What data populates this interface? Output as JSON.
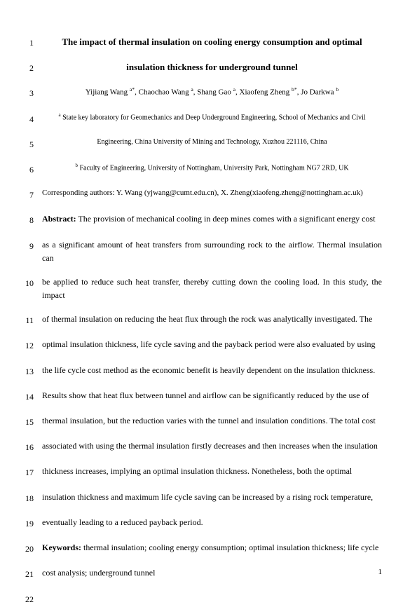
{
  "lines": [
    {
      "num": "1",
      "cls": "title",
      "text": "The impact of thermal insulation on cooling energy consumption and optimal"
    },
    {
      "num": "2",
      "cls": "title",
      "text": "insulation thickness for underground tunnel"
    },
    {
      "num": "3",
      "cls": "authors",
      "html": "Yijiang Wang <sup>a*</sup>, Chaochao Wang <sup>a</sup>, Shang Gao <sup>a</sup>, Xiaofeng Zheng <sup>b*</sup>, Jo Darkwa <sup>b</sup>"
    },
    {
      "num": "4",
      "cls": "affil",
      "html": "<sup>a</sup> State key laboratory for Geomechanics and Deep Underground Engineering, School of Mechanics and Civil"
    },
    {
      "num": "5",
      "cls": "affil",
      "text": "Engineering, China University of Mining and Technology, Xuzhou 221116, China"
    },
    {
      "num": "6",
      "cls": "affil",
      "html": "<sup>b</sup> Faculty of Engineering, University of Nottingham, University Park, Nottingham NG7 2RD, UK"
    },
    {
      "num": "7",
      "cls": "corr",
      "text": "Corresponding authors: Y. Wang (yjwang@cumt.edu.cn), X. Zheng(xiaofeng.zheng@nottingham.ac.uk)"
    },
    {
      "num": "8",
      "cls": "body-text",
      "html": "<span class=\"bold\">Abstract:</span> The provision of mechanical cooling in deep mines comes with a significant energy cost"
    },
    {
      "num": "9",
      "cls": "body-text",
      "text": "as a significant amount of heat transfers from surrounding rock to the airflow. Thermal insulation can"
    },
    {
      "num": "10",
      "cls": "body-text",
      "text": "be applied to reduce such heat transfer, thereby cutting down the cooling load. In this study, the impact"
    },
    {
      "num": "11",
      "cls": "body-text",
      "text": "of thermal insulation on reducing the heat flux through the rock was analytically investigated. The"
    },
    {
      "num": "12",
      "cls": "body-text",
      "text": "optimal insulation thickness, life cycle saving and the payback period were also evaluated by using"
    },
    {
      "num": "13",
      "cls": "body-text",
      "text": "the life cycle cost method as the economic benefit is heavily dependent on the insulation thickness."
    },
    {
      "num": "14",
      "cls": "body-text",
      "text": "Results show that heat flux between tunnel and airflow can be significantly reduced by the use of"
    },
    {
      "num": "15",
      "cls": "body-text",
      "text": "thermal insulation, but the reduction varies with the tunnel and insulation conditions. The total cost"
    },
    {
      "num": "16",
      "cls": "body-text",
      "text": "associated with using the thermal insulation firstly decreases and then increases when the insulation"
    },
    {
      "num": "17",
      "cls": "body-text",
      "text": "thickness increases, implying an optimal insulation thickness. Nonetheless, both the optimal"
    },
    {
      "num": "18",
      "cls": "body-text",
      "text": "insulation thickness and maximum life cycle saving can be increased by a rising rock temperature,"
    },
    {
      "num": "19",
      "cls": "body-text",
      "text": "eventually leading to a reduced payback period."
    },
    {
      "num": "20",
      "cls": "body-text",
      "html": "<span class=\"bold\">Keywords:</span> thermal insulation; cooling energy consumption; optimal insulation thickness; life cycle"
    },
    {
      "num": "21",
      "cls": "body-text",
      "text": "cost analysis; underground tunnel"
    },
    {
      "num": "22",
      "cls": "body-text",
      "text": ""
    }
  ],
  "pageNumber": "1"
}
